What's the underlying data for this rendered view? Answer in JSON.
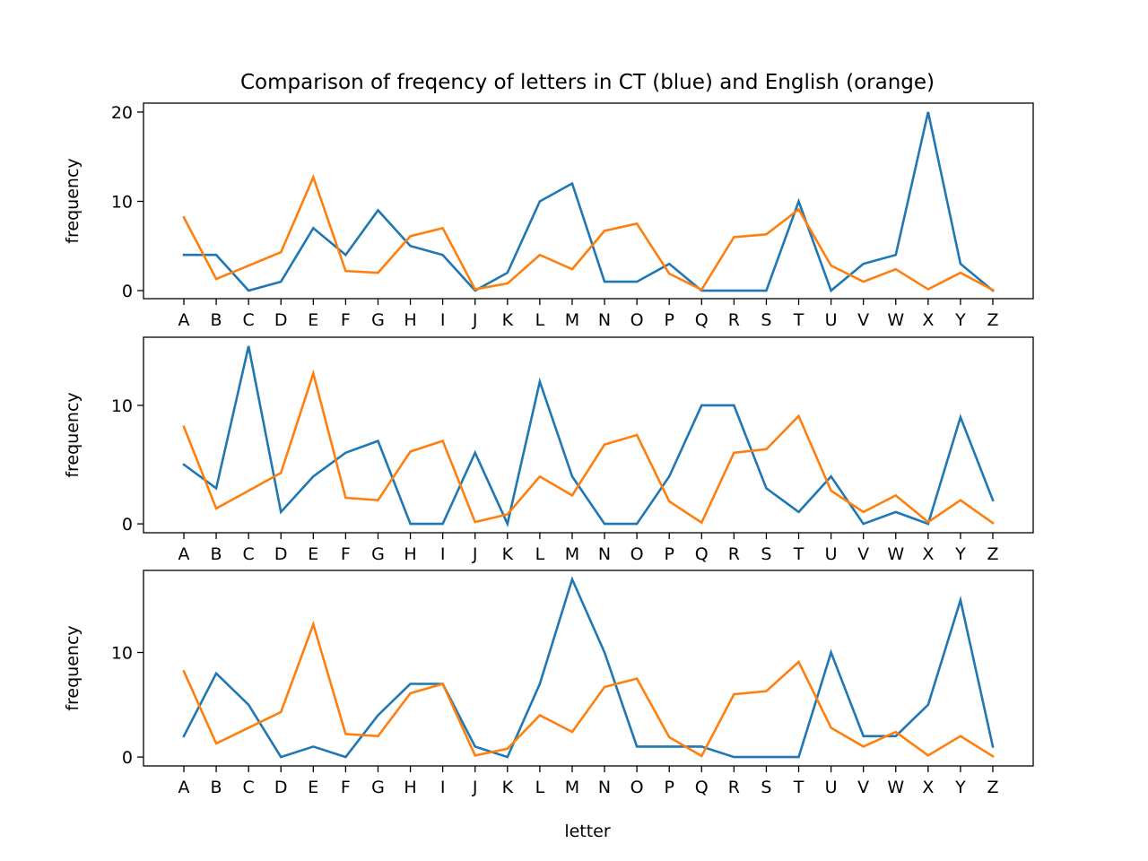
{
  "figure": {
    "title": "Comparison of freqency of letters in CT (blue) and English (orange)",
    "xlabel": "letter"
  },
  "colors": {
    "blue": "#1f77b4",
    "orange": "#ff7f0e"
  },
  "chart_data": [
    {
      "type": "line",
      "categories": [
        "A",
        "B",
        "C",
        "D",
        "E",
        "F",
        "G",
        "H",
        "I",
        "J",
        "K",
        "L",
        "M",
        "N",
        "O",
        "P",
        "Q",
        "R",
        "S",
        "T",
        "U",
        "V",
        "W",
        "X",
        "Y",
        "Z"
      ],
      "ylabel": "frequency",
      "ylim": [
        -0.9,
        21
      ],
      "yticks": [
        0,
        10,
        20
      ],
      "series": [
        {
          "color": "#1f77b4",
          "values": [
            4,
            4,
            0,
            1,
            7,
            4,
            9,
            5,
            4,
            0,
            2,
            10,
            12,
            1,
            1,
            3,
            0,
            0,
            0,
            10,
            0,
            3,
            4,
            20,
            3,
            0
          ]
        },
        {
          "color": "#ff7f0e",
          "values": [
            8.2,
            1.3,
            2.8,
            4.3,
            12.7,
            2.2,
            2.0,
            6.1,
            7.0,
            0.15,
            0.8,
            4.0,
            2.4,
            6.7,
            7.5,
            1.9,
            0.1,
            6.0,
            6.3,
            9.1,
            2.8,
            1.0,
            2.4,
            0.15,
            2.0,
            0.07
          ]
        }
      ]
    },
    {
      "type": "line",
      "categories": [
        "A",
        "B",
        "C",
        "D",
        "E",
        "F",
        "G",
        "H",
        "I",
        "J",
        "K",
        "L",
        "M",
        "N",
        "O",
        "P",
        "Q",
        "R",
        "S",
        "T",
        "U",
        "V",
        "W",
        "X",
        "Y",
        "Z"
      ],
      "ylabel": "frequency",
      "ylim": [
        -0.75,
        15.75
      ],
      "yticks": [
        0,
        10
      ],
      "series": [
        {
          "color": "#1f77b4",
          "values": [
            5,
            3,
            15,
            1,
            4,
            6,
            7,
            0,
            0,
            6,
            0,
            12,
            4,
            0,
            0,
            4,
            10,
            10,
            3,
            1,
            4,
            0,
            1,
            0,
            9,
            2
          ]
        },
        {
          "color": "#ff7f0e",
          "values": [
            8.2,
            1.3,
            2.8,
            4.3,
            12.7,
            2.2,
            2.0,
            6.1,
            7.0,
            0.15,
            0.8,
            4.0,
            2.4,
            6.7,
            7.5,
            1.9,
            0.1,
            6.0,
            6.3,
            9.1,
            2.8,
            1.0,
            2.4,
            0.15,
            2.0,
            0.07
          ]
        }
      ]
    },
    {
      "type": "line",
      "categories": [
        "A",
        "B",
        "C",
        "D",
        "E",
        "F",
        "G",
        "H",
        "I",
        "J",
        "K",
        "L",
        "M",
        "N",
        "O",
        "P",
        "Q",
        "R",
        "S",
        "T",
        "U",
        "V",
        "W",
        "X",
        "Y",
        "Z"
      ],
      "ylabel": "frequency",
      "ylim": [
        -0.85,
        17.85
      ],
      "yticks": [
        0,
        10
      ],
      "series": [
        {
          "color": "#1f77b4",
          "values": [
            2,
            8,
            5,
            0,
            1,
            0,
            4,
            7,
            7,
            1,
            0,
            7,
            17,
            10,
            1,
            1,
            1,
            0,
            0,
            0,
            10,
            2,
            2,
            5,
            15,
            1
          ]
        },
        {
          "color": "#ff7f0e",
          "values": [
            8.2,
            1.3,
            2.8,
            4.3,
            12.7,
            2.2,
            2.0,
            6.1,
            7.0,
            0.15,
            0.8,
            4.0,
            2.4,
            6.7,
            7.5,
            1.9,
            0.1,
            6.0,
            6.3,
            9.1,
            2.8,
            1.0,
            2.4,
            0.15,
            2.0,
            0.07
          ]
        }
      ]
    }
  ]
}
